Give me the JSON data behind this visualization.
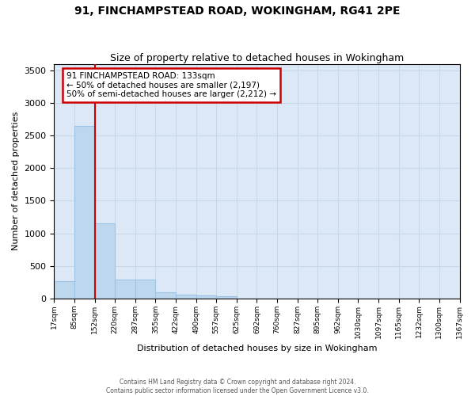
{
  "title": "91, FINCHAMPSTEAD ROAD, WOKINGHAM, RG41 2PE",
  "subtitle": "Size of property relative to detached houses in Wokingham",
  "xlabel": "Distribution of detached houses by size in Wokingham",
  "ylabel": "Number of detached properties",
  "bin_labels": [
    "17sqm",
    "85sqm",
    "152sqm",
    "220sqm",
    "287sqm",
    "355sqm",
    "422sqm",
    "490sqm",
    "557sqm",
    "625sqm",
    "692sqm",
    "760sqm",
    "827sqm",
    "895sqm",
    "962sqm",
    "1030sqm",
    "1097sqm",
    "1165sqm",
    "1232sqm",
    "1300sqm",
    "1367sqm"
  ],
  "bar_heights": [
    270,
    2650,
    1150,
    285,
    285,
    100,
    55,
    45,
    30,
    0,
    0,
    0,
    0,
    0,
    0,
    0,
    0,
    0,
    0,
    0
  ],
  "bar_color": "#bdd7ee",
  "bar_edge_color": "#9dc3e6",
  "red_line_x": 2,
  "red_line_color": "#cc0000",
  "annotation_text_line1": "91 FINCHAMPSTEAD ROAD: 133sqm",
  "annotation_text_line2": "← 50% of detached houses are smaller (2,197)",
  "annotation_text_line3": "50% of semi-detached houses are larger (2,212) →",
  "annotation_box_facecolor": "#ffffff",
  "annotation_box_edgecolor": "#cc0000",
  "grid_color": "#c8d8e8",
  "background_color": "#dce8f5",
  "ylim": [
    0,
    3600
  ],
  "yticks": [
    0,
    500,
    1000,
    1500,
    2000,
    2500,
    3000,
    3500
  ],
  "title_fontsize": 10,
  "subtitle_fontsize": 9,
  "ylabel_fontsize": 8,
  "xlabel_fontsize": 8,
  "footer_line1": "Contains HM Land Registry data © Crown copyright and database right 2024.",
  "footer_line2": "Contains public sector information licensed under the Open Government Licence v3.0."
}
